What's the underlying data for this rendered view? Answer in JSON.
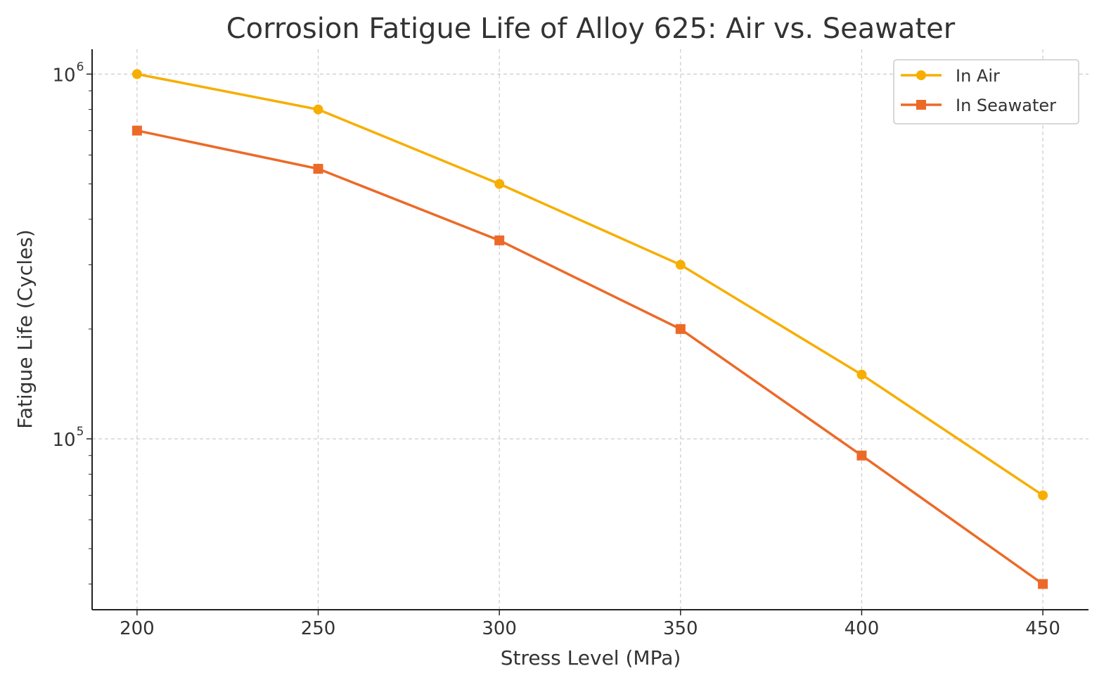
{
  "chart_data": {
    "type": "line",
    "title": "Corrosion Fatigue Life of Alloy 625: Air vs. Seawater",
    "xlabel": "Stress Level (MPa)",
    "ylabel": "Fatigue Life (Cycles)",
    "yscale": "log",
    "x": [
      200,
      250,
      300,
      350,
      400,
      450
    ],
    "xticks": [
      "200",
      "250",
      "300",
      "350",
      "400",
      "450"
    ],
    "yticks": [
      {
        "value": 1000000,
        "base": "10",
        "exp": "6"
      },
      {
        "value": 100000,
        "base": "10",
        "exp": "5"
      }
    ],
    "xlim": [
      187.6,
      462.6
    ],
    "ylim": [
      34000,
      1170000
    ],
    "grid": true,
    "legend_position": "top-right",
    "series": [
      {
        "name": "In Air",
        "marker": "circle",
        "color": "#F7AE00",
        "values": [
          1000000,
          800000,
          500000,
          300000,
          150000,
          70000
        ]
      },
      {
        "name": "In Seawater",
        "marker": "square",
        "color": "#EC6A28",
        "values": [
          700000,
          550000,
          350000,
          200000,
          90000,
          40000
        ]
      }
    ]
  }
}
